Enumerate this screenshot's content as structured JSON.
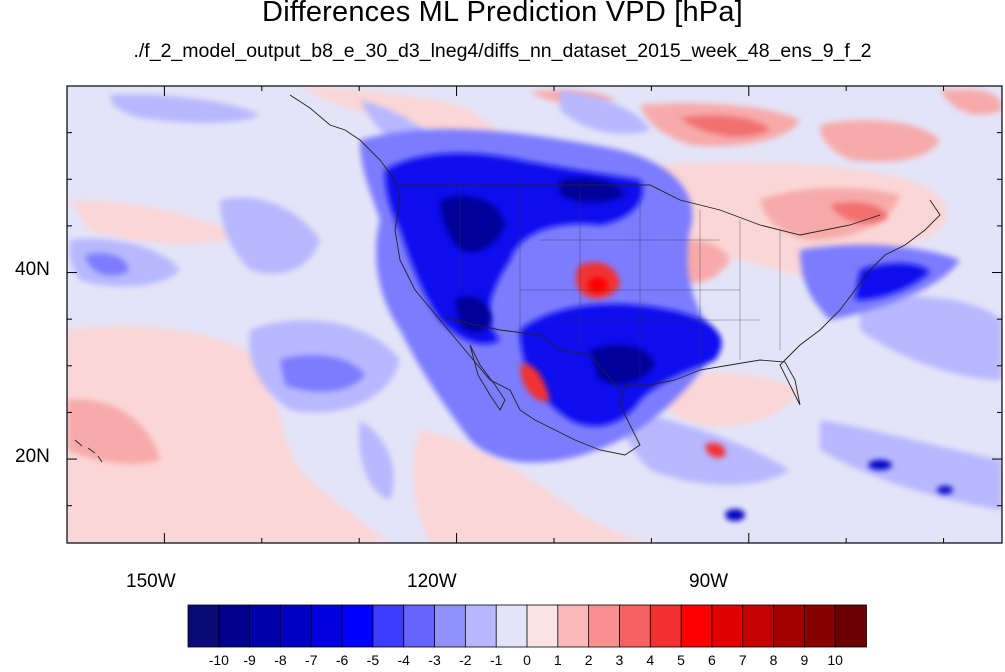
{
  "title": "Differences ML Prediction VPD [hPa]",
  "subtitle": "./f_2_model_output_b8_e_30_d3_lneg4/diffs_nn_dataset_2015_week_48_ens_9_f_2",
  "map": {
    "projection": "cylindrical-equidistant",
    "lon_range": [
      -160,
      -64
    ],
    "lat_range": [
      11,
      60
    ],
    "field": "VPD difference (ML prediction) [hPa]"
  },
  "axes": {
    "x_ticks": [
      {
        "label": "150W",
        "lon": -150
      },
      {
        "label": "120W",
        "lon": -120
      },
      {
        "label": "90W",
        "lon": -90
      }
    ],
    "y_ticks": [
      {
        "label": "40N",
        "lat": 40
      },
      {
        "label": "20N",
        "lat": 20
      }
    ]
  },
  "colorbar": {
    "levels": [
      "-10",
      "-9",
      "-8",
      "-7",
      "-6",
      "-5",
      "-4",
      "-3",
      "-2",
      "-1",
      "0",
      "1",
      "2",
      "3",
      "4",
      "5",
      "6",
      "7",
      "8",
      "9",
      "10"
    ],
    "colors": [
      "#0a0a78",
      "#00008c",
      "#0000a8",
      "#0000c4",
      "#0000e0",
      "#0000ff",
      "#3c3cff",
      "#6464ff",
      "#9292ff",
      "#b8b8ff",
      "#e4e4f8",
      "#fde4e4",
      "#fbb9b9",
      "#f89090",
      "#f56060",
      "#f23030",
      "#ff0000",
      "#e00000",
      "#c40000",
      "#a40000",
      "#880000",
      "#6a0000"
    ]
  },
  "colors": {
    "background": "#e4e4f8",
    "coastline": "#222222"
  }
}
